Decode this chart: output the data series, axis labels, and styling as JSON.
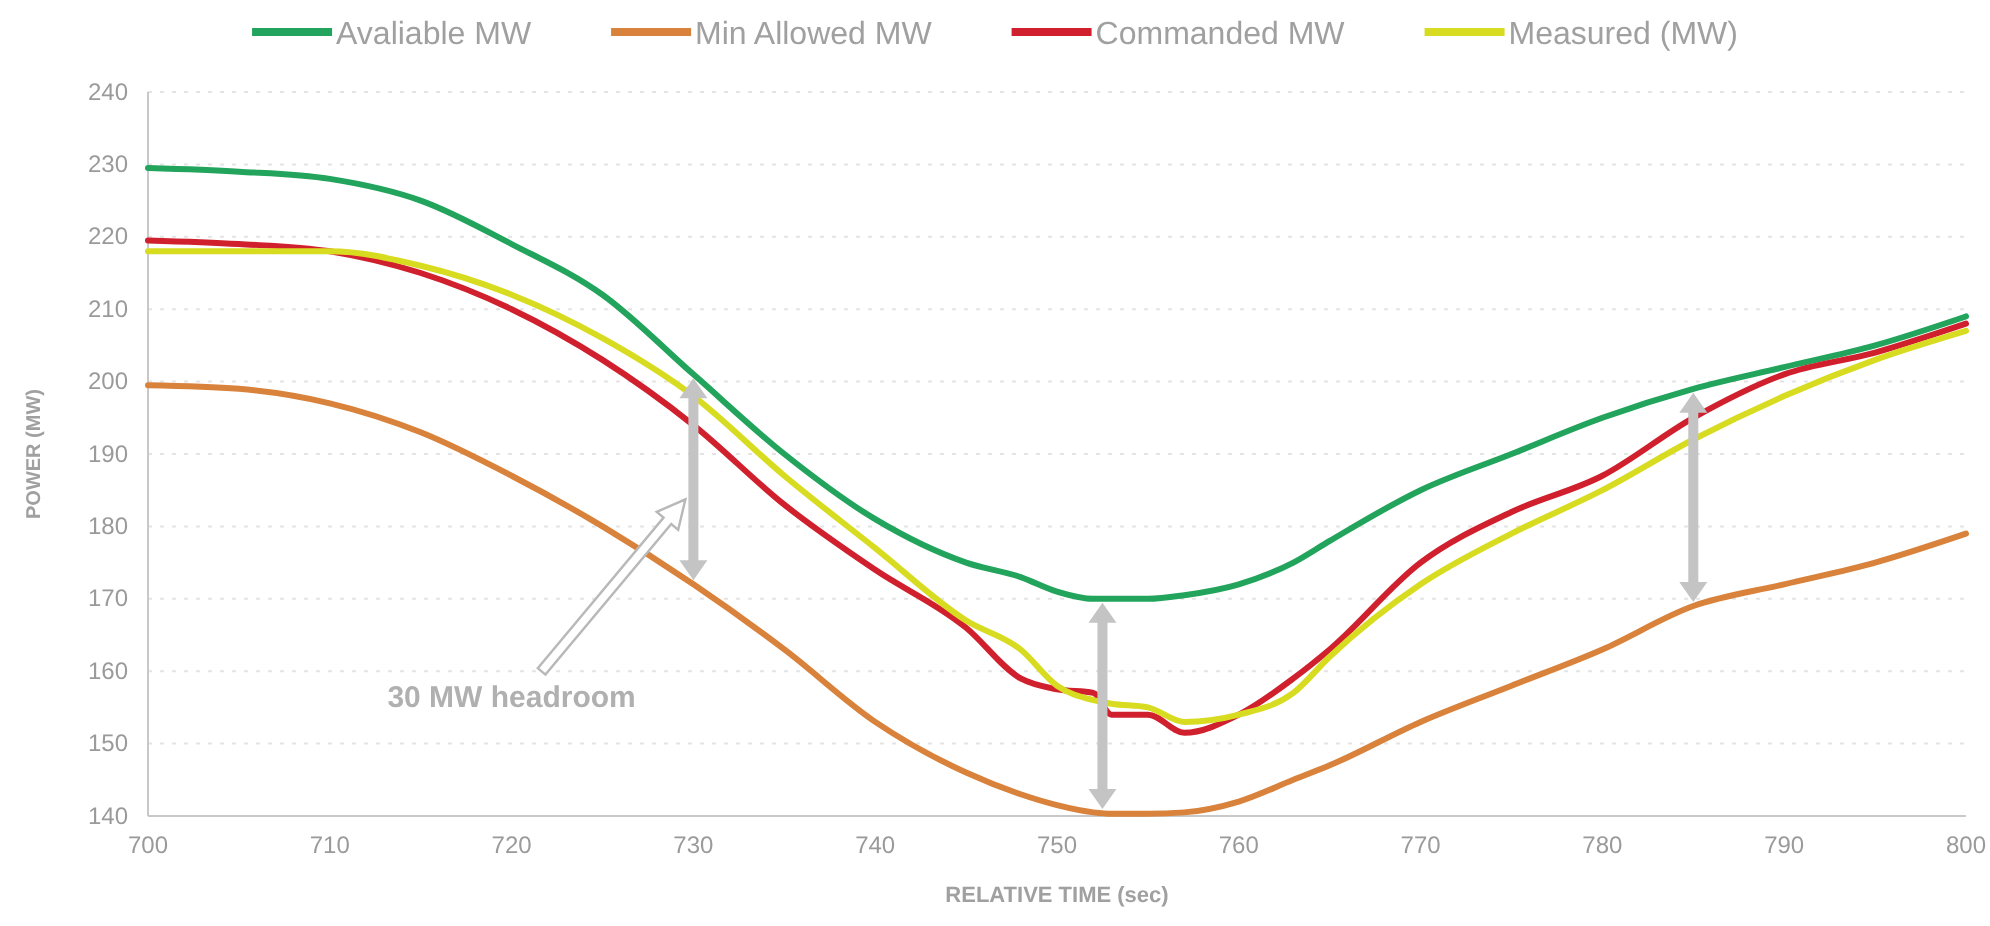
{
  "chart_data": {
    "type": "line",
    "xlabel": "RELATIVE TIME (sec)",
    "ylabel": "POWER (MW)",
    "x": [
      700,
      705,
      710,
      715,
      720,
      725,
      730,
      735,
      740,
      745,
      748,
      750,
      752,
      753,
      755,
      757,
      760,
      763,
      765,
      770,
      775,
      780,
      785,
      790,
      795,
      800
    ],
    "series": [
      {
        "name": "Avaliable MW",
        "color": "#22a45c",
        "values": [
          229.5,
          229,
          228,
          225,
          219,
          212,
          201,
          190,
          181,
          175,
          173,
          171,
          170,
          170,
          170,
          170.5,
          172,
          175,
          178,
          185,
          190,
          195,
          199,
          202,
          205,
          209
        ]
      },
      {
        "name": "Min Allowed MW",
        "color": "#d9823b",
        "values": [
          199.5,
          199,
          197,
          193,
          187,
          180,
          172,
          163,
          153,
          146,
          143,
          141.5,
          140.5,
          140.3,
          140.3,
          140.5,
          142,
          145,
          147,
          153,
          158,
          163,
          169,
          172,
          175,
          179
        ]
      },
      {
        "name": "Commanded MW",
        "color": "#d0202e",
        "values": [
          219.5,
          219,
          218,
          215,
          210,
          203,
          194,
          183,
          174,
          166,
          159,
          157.5,
          157,
          154,
          154,
          151.5,
          154,
          159,
          163,
          175,
          182,
          187,
          195,
          201,
          204,
          208
        ]
      },
      {
        "name": "Measured (MW)",
        "color": "#d8dc20",
        "values": [
          218,
          218,
          218,
          216,
          212,
          206,
          198,
          187,
          177,
          167,
          163,
          158,
          156,
          155.5,
          155,
          153,
          154,
          157,
          162,
          172,
          179,
          185,
          192,
          198,
          203,
          207
        ]
      }
    ],
    "xlim": [
      700,
      800
    ],
    "xticks": [
      700,
      710,
      720,
      730,
      740,
      750,
      760,
      770,
      780,
      790,
      800
    ],
    "ylim": [
      140,
      240
    ],
    "yticks": [
      140,
      150,
      160,
      170,
      180,
      190,
      200,
      210,
      220,
      230,
      240
    ],
    "grid": "y",
    "legend": "top",
    "marker": "none",
    "line_style": "solid",
    "annotations": [
      "30 MW headroom"
    ]
  }
}
